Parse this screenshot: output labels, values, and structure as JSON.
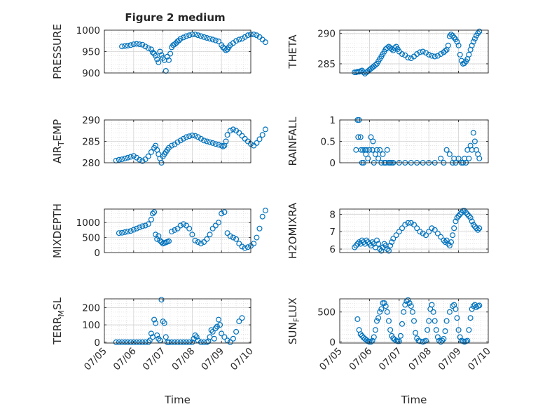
{
  "figure": {
    "title": "Figure 2 medium",
    "marker_color": "#0072BD",
    "axis_color": "#262626",
    "grid_color": "#dcdcdc"
  },
  "chart_data": [
    {
      "type": "scatter",
      "ylabel": "PRESSURE",
      "ylim": [
        900,
        1000
      ],
      "yticks": [
        900,
        950,
        1000
      ],
      "ytick_labels": [
        "900",
        "950",
        "1000"
      ],
      "x": [
        0.6,
        0.7,
        0.8,
        0.9,
        1.0,
        1.1,
        1.2,
        1.3,
        1.4,
        1.5,
        1.6,
        1.65,
        1.7,
        1.75,
        1.8,
        1.85,
        1.9,
        1.95,
        2.0,
        2.05,
        2.1,
        2.15,
        2.2,
        2.25,
        2.3,
        2.35,
        2.4,
        2.45,
        2.5,
        2.55,
        2.6,
        2.7,
        2.8,
        2.9,
        3.0,
        3.1,
        3.2,
        3.3,
        3.4,
        3.5,
        3.6,
        3.7,
        3.8,
        3.9,
        4.0,
        4.05,
        4.1,
        4.15,
        4.2,
        4.25,
        4.3,
        4.4,
        4.5,
        4.6,
        4.7,
        4.8,
        4.9,
        5.0,
        5.1,
        5.2,
        5.3,
        5.4,
        5.5
      ],
      "values": [
        962,
        963,
        964,
        965,
        967,
        968,
        967,
        966,
        962,
        958,
        955,
        948,
        945,
        940,
        932,
        925,
        950,
        942,
        935,
        930,
        905,
        938,
        930,
        945,
        960,
        965,
        967,
        970,
        974,
        976,
        980,
        983,
        986,
        988,
        990,
        990,
        988,
        986,
        984,
        982,
        980,
        978,
        976,
        974,
        965,
        960,
        957,
        953,
        955,
        960,
        965,
        970,
        975,
        978,
        980,
        984,
        988,
        990,
        990,
        988,
        984,
        978,
        972
      ]
    },
    {
      "type": "scatter",
      "ylabel": "THETA",
      "ylim": [
        283.5,
        290.5
      ],
      "yticks": [
        285,
        290
      ],
      "ytick_labels": [
        "285",
        "290"
      ],
      "x": [
        0.5,
        0.55,
        0.6,
        0.65,
        0.7,
        0.75,
        0.8,
        0.85,
        0.9,
        0.95,
        1.0,
        1.05,
        1.1,
        1.15,
        1.2,
        1.25,
        1.3,
        1.35,
        1.4,
        1.45,
        1.5,
        1.55,
        1.6,
        1.65,
        1.7,
        1.75,
        1.8,
        1.85,
        1.9,
        1.95,
        2.0,
        2.1,
        2.2,
        2.3,
        2.4,
        2.5,
        2.6,
        2.7,
        2.8,
        2.9,
        3.0,
        3.1,
        3.2,
        3.3,
        3.4,
        3.5,
        3.55,
        3.6,
        3.65,
        3.7,
        3.75,
        3.8,
        3.85,
        3.9,
        3.95,
        4.0,
        4.05,
        4.1,
        4.15,
        4.2,
        4.25,
        4.3,
        4.35,
        4.4,
        4.45,
        4.5,
        4.55,
        4.6,
        4.65,
        4.7
      ],
      "values": [
        283.6,
        283.6,
        283.7,
        283.7,
        283.8,
        283.9,
        283.6,
        283.4,
        283.6,
        283.8,
        284.0,
        284.2,
        284.4,
        284.6,
        284.8,
        285.0,
        285.4,
        285.8,
        286.2,
        286.6,
        287.0,
        287.4,
        287.6,
        287.8,
        287.6,
        287.4,
        287.2,
        287.6,
        287.8,
        287.4,
        287.0,
        286.6,
        286.4,
        286.0,
        285.9,
        286.2,
        286.6,
        286.9,
        287.0,
        286.8,
        286.5,
        286.3,
        286.2,
        286.3,
        286.6,
        286.9,
        287.1,
        287.3,
        288.0,
        289.5,
        289.8,
        289.6,
        289.3,
        289.0,
        288.6,
        288.0,
        286.5,
        285.5,
        285.0,
        285.1,
        285.4,
        285.8,
        286.5,
        287.3,
        288.0,
        288.6,
        289.1,
        289.6,
        290.0,
        290.3
      ]
    },
    {
      "type": "scatter",
      "ylabel": "AIR_TEMP",
      "ylabel_parts": {
        "base": "AIR",
        "sub": "T",
        "rest": "EMP"
      },
      "ylim": [
        280,
        290
      ],
      "yticks": [
        280,
        285,
        290
      ],
      "ytick_labels": [
        "280",
        "285",
        "290"
      ],
      "x": [
        0.4,
        0.5,
        0.6,
        0.7,
        0.8,
        0.9,
        1.0,
        1.1,
        1.2,
        1.3,
        1.4,
        1.5,
        1.6,
        1.7,
        1.75,
        1.8,
        1.85,
        1.9,
        1.95,
        2.0,
        2.05,
        2.1,
        2.15,
        2.2,
        2.3,
        2.4,
        2.5,
        2.6,
        2.7,
        2.8,
        2.9,
        3.0,
        3.1,
        3.2,
        3.3,
        3.4,
        3.5,
        3.6,
        3.7,
        3.8,
        3.9,
        4.0,
        4.05,
        4.1,
        4.15,
        4.2,
        4.3,
        4.4,
        4.5,
        4.6,
        4.7,
        4.8,
        4.9,
        5.0,
        5.1,
        5.2,
        5.3,
        5.4,
        5.5
      ],
      "values": [
        280.5,
        280.7,
        280.8,
        281.0,
        281.2,
        281.4,
        281.6,
        281.2,
        280.7,
        280.4,
        280.8,
        281.5,
        282.5,
        283.5,
        284.0,
        283.0,
        282.0,
        281.0,
        280.0,
        281.5,
        282.0,
        282.5,
        283.0,
        283.5,
        284.0,
        284.3,
        284.8,
        285.2,
        285.6,
        286.0,
        286.2,
        286.4,
        286.3,
        286.0,
        285.6,
        285.2,
        285.0,
        284.8,
        284.6,
        284.4,
        284.2,
        284.0,
        283.8,
        284.0,
        285.0,
        286.5,
        287.5,
        287.8,
        287.5,
        287.0,
        286.3,
        285.6,
        285.0,
        284.4,
        284.0,
        284.6,
        285.5,
        286.5,
        287.8
      ]
    },
    {
      "type": "scatter",
      "ylabel": "RAINFALL",
      "ylim": [
        0,
        1
      ],
      "yticks": [
        0,
        0.5,
        1
      ],
      "ytick_labels": [
        "0",
        "0.5",
        "1"
      ],
      "x": [
        0.55,
        0.6,
        0.62,
        0.65,
        0.7,
        0.72,
        0.75,
        0.78,
        0.8,
        0.85,
        0.88,
        0.9,
        0.95,
        1.0,
        1.05,
        1.1,
        1.12,
        1.15,
        1.2,
        1.25,
        1.3,
        1.35,
        1.4,
        1.45,
        1.5,
        1.55,
        1.6,
        1.65,
        1.7,
        1.75,
        1.8,
        2.0,
        2.2,
        2.4,
        2.6,
        2.8,
        3.0,
        3.2,
        3.4,
        3.5,
        3.6,
        3.7,
        3.8,
        3.85,
        3.9,
        4.0,
        4.1,
        4.15,
        4.2,
        4.25,
        4.3,
        4.35,
        4.4,
        4.45,
        4.5,
        4.55,
        4.6,
        4.65,
        4.7
      ],
      "values": [
        0.3,
        1.0,
        0.6,
        1.0,
        0.6,
        0.3,
        0.0,
        0.3,
        0.0,
        0.3,
        0.2,
        0.3,
        0.1,
        0.3,
        0.6,
        0.3,
        0.5,
        0.0,
        0.2,
        0.3,
        0.1,
        0.3,
        0.0,
        0.2,
        0.0,
        0.0,
        0.3,
        0.0,
        0.0,
        0.0,
        0.0,
        0.0,
        0.0,
        0.0,
        0.0,
        0.0,
        0.0,
        0.0,
        0.1,
        0.0,
        0.3,
        0.2,
        0.0,
        0.1,
        0.0,
        0.1,
        0.0,
        0.0,
        0.1,
        0.0,
        0.3,
        0.1,
        0.4,
        0.3,
        0.7,
        0.5,
        0.3,
        0.2,
        0.1
      ]
    },
    {
      "type": "scatter",
      "ylabel": "MIXDEPTH",
      "ylim": [
        0,
        1450
      ],
      "yticks": [
        0,
        500,
        1000
      ],
      "ytick_labels": [
        "0",
        "500",
        "1000"
      ],
      "x": [
        0.5,
        0.6,
        0.7,
        0.8,
        0.9,
        1.0,
        1.1,
        1.2,
        1.3,
        1.4,
        1.5,
        1.6,
        1.65,
        1.7,
        1.75,
        1.8,
        1.85,
        1.9,
        1.95,
        2.0,
        2.05,
        2.1,
        2.15,
        2.2,
        2.3,
        2.4,
        2.5,
        2.6,
        2.7,
        2.8,
        2.9,
        3.0,
        3.1,
        3.2,
        3.3,
        3.4,
        3.5,
        3.6,
        3.7,
        3.8,
        3.9,
        4.0,
        4.1,
        4.2,
        4.3,
        4.4,
        4.5,
        4.6,
        4.7,
        4.8,
        4.9,
        5.0,
        5.1,
        5.2,
        5.3,
        5.4,
        5.5
      ],
      "values": [
        650,
        660,
        680,
        700,
        720,
        760,
        800,
        840,
        880,
        900,
        950,
        1100,
        1300,
        1350,
        600,
        450,
        550,
        400,
        350,
        300,
        320,
        340,
        360,
        380,
        700,
        750,
        800,
        900,
        950,
        900,
        800,
        600,
        400,
        350,
        300,
        350,
        450,
        600,
        800,
        900,
        1000,
        1300,
        1350,
        650,
        550,
        500,
        450,
        300,
        200,
        150,
        180,
        220,
        300,
        500,
        800,
        1200,
        1400
      ]
    },
    {
      "type": "scatter",
      "ylabel": "H2OMIXRA",
      "ylim": [
        5.8,
        8.3
      ],
      "yticks": [
        6,
        7,
        8
      ],
      "ytick_labels": [
        "6",
        "7",
        "8"
      ],
      "x": [
        0.5,
        0.55,
        0.6,
        0.65,
        0.7,
        0.75,
        0.8,
        0.85,
        0.9,
        0.95,
        1.0,
        1.05,
        1.1,
        1.15,
        1.2,
        1.25,
        1.3,
        1.35,
        1.4,
        1.45,
        1.5,
        1.55,
        1.6,
        1.65,
        1.7,
        1.75,
        1.8,
        1.9,
        2.0,
        2.1,
        2.2,
        2.3,
        2.4,
        2.5,
        2.6,
        2.7,
        2.8,
        2.9,
        3.0,
        3.1,
        3.2,
        3.3,
        3.4,
        3.5,
        3.55,
        3.6,
        3.65,
        3.7,
        3.75,
        3.8,
        3.85,
        3.9,
        3.95,
        4.0,
        4.05,
        4.1,
        4.15,
        4.2,
        4.25,
        4.3,
        4.35,
        4.4,
        4.45,
        4.5,
        4.55,
        4.6,
        4.65,
        4.7
      ],
      "values": [
        6.1,
        6.2,
        6.3,
        6.4,
        6.3,
        6.5,
        6.4,
        6.3,
        6.5,
        6.4,
        6.3,
        6.2,
        6.4,
        6.3,
        6.1,
        6.5,
        6.3,
        6.0,
        5.9,
        6.1,
        6.3,
        6.2,
        6.0,
        5.9,
        6.2,
        6.4,
        6.6,
        6.8,
        7.0,
        7.2,
        7.4,
        7.5,
        7.5,
        7.4,
        7.2,
        7.0,
        6.9,
        6.8,
        7.0,
        7.2,
        7.1,
        6.9,
        6.7,
        6.5,
        6.4,
        6.5,
        6.3,
        6.2,
        6.4,
        6.8,
        7.2,
        7.6,
        7.8,
        7.9,
        8.0,
        8.1,
        8.2,
        8.2,
        8.1,
        8.0,
        7.9,
        7.8,
        7.6,
        7.4,
        7.3,
        7.2,
        7.1,
        7.2
      ]
    },
    {
      "type": "scatter",
      "ylabel": "TERR_MSL",
      "ylabel_parts": {
        "base": "TERR",
        "sub": "M",
        "rest": "SL"
      },
      "ylim": [
        -5,
        250
      ],
      "yticks": [
        0,
        100,
        200
      ],
      "ytick_labels": [
        "0",
        "100",
        "200"
      ],
      "x": [
        0.4,
        0.5,
        0.6,
        0.7,
        0.8,
        0.9,
        1.0,
        1.1,
        1.2,
        1.3,
        1.4,
        1.5,
        1.55,
        1.6,
        1.65,
        1.7,
        1.75,
        1.8,
        1.85,
        1.9,
        1.95,
        2.0,
        2.05,
        2.1,
        2.15,
        2.2,
        2.3,
        2.4,
        2.5,
        2.6,
        2.7,
        2.8,
        2.9,
        3.0,
        3.05,
        3.1,
        3.15,
        3.2,
        3.3,
        3.4,
        3.5,
        3.55,
        3.6,
        3.65,
        3.7,
        3.75,
        3.8,
        3.85,
        3.9,
        3.95,
        4.0,
        4.1,
        4.2,
        4.3,
        4.4,
        4.5,
        4.6,
        4.7
      ],
      "values": [
        0,
        0,
        0,
        0,
        0,
        0,
        0,
        0,
        0,
        0,
        0,
        0,
        10,
        50,
        30,
        130,
        110,
        40,
        20,
        10,
        245,
        120,
        110,
        30,
        0,
        0,
        0,
        0,
        0,
        0,
        0,
        0,
        0,
        0,
        20,
        40,
        30,
        10,
        0,
        0,
        0,
        5,
        30,
        70,
        60,
        20,
        80,
        90,
        130,
        100,
        50,
        30,
        10,
        0,
        20,
        60,
        120,
        140
      ]
    },
    {
      "type": "scatter",
      "ylabel": "SUN_FLUX",
      "ylabel_parts": {
        "base": "SUN",
        "sub": "F",
        "rest": "LUX"
      },
      "ylim": [
        -20,
        720
      ],
      "yticks": [
        0,
        500
      ],
      "ytick_labels": [
        "0",
        "500"
      ],
      "x": [
        0.6,
        0.65,
        0.7,
        0.75,
        0.8,
        0.85,
        0.9,
        0.95,
        1.0,
        1.05,
        1.1,
        1.15,
        1.2,
        1.25,
        1.3,
        1.35,
        1.4,
        1.45,
        1.5,
        1.55,
        1.6,
        1.65,
        1.7,
        1.75,
        1.8,
        1.85,
        1.9,
        1.95,
        2.0,
        2.05,
        2.1,
        2.15,
        2.2,
        2.25,
        2.3,
        2.35,
        2.4,
        2.45,
        2.5,
        2.55,
        2.6,
        2.65,
        2.7,
        2.8,
        2.85,
        2.9,
        2.95,
        3.0,
        3.05,
        3.1,
        3.15,
        3.2,
        3.25,
        3.3,
        3.35,
        3.4,
        3.45,
        3.5,
        3.55,
        3.6,
        3.7,
        3.8,
        3.85,
        3.9,
        3.95,
        4.0,
        4.05,
        4.1,
        4.15,
        4.2,
        4.25,
        4.3,
        4.35,
        4.4,
        4.45,
        4.5,
        4.55,
        4.6,
        4.65,
        4.7
      ],
      "values": [
        380,
        200,
        130,
        100,
        70,
        50,
        30,
        10,
        0,
        0,
        20,
        80,
        200,
        350,
        400,
        500,
        550,
        650,
        650,
        600,
        500,
        350,
        200,
        100,
        60,
        40,
        20,
        10,
        10,
        100,
        300,
        500,
        620,
        680,
        700,
        650,
        600,
        500,
        350,
        150,
        60,
        20,
        10,
        0,
        10,
        20,
        200,
        350,
        550,
        620,
        500,
        350,
        200,
        80,
        20,
        0,
        20,
        50,
        180,
        350,
        500,
        600,
        620,
        550,
        400,
        200,
        80,
        20,
        10,
        0,
        10,
        20,
        200,
        400,
        550,
        600,
        620,
        580,
        600,
        610
      ]
    }
  ],
  "x_axis": {
    "range": [
      0,
      5
    ],
    "ticks": [
      0,
      1,
      2,
      3,
      4,
      5
    ],
    "tick_labels": [
      "07/05",
      "07/06",
      "07/07",
      "07/08",
      "07/09",
      "07/10"
    ],
    "label": "Time"
  }
}
